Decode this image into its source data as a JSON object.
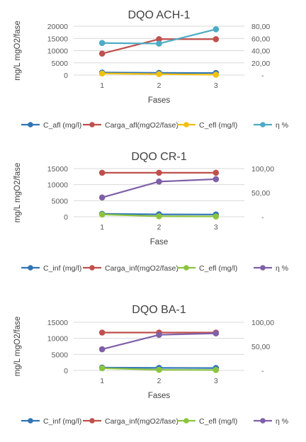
{
  "chart_data": [
    {
      "type": "line",
      "title": "DQO ACH-1",
      "xlabel": "Fases",
      "ylabel": "mg/L mgO2/fase",
      "categories": [
        "1",
        "2",
        "3"
      ],
      "ylim": [
        0,
        20000
      ],
      "y_ticks": [
        "0",
        "5000",
        "10000",
        "15000",
        "20000"
      ],
      "y2lim": [
        0,
        80
      ],
      "y2_ticks": [
        "-",
        "20,00",
        "40,00",
        "60,00",
        "80,00"
      ],
      "series": [
        {
          "name": "C_afl (mg/l)",
          "axis": "left",
          "color": "#2e75b6",
          "values": [
            1050,
            900,
            850
          ]
        },
        {
          "name": "Carga_afl(mgO2/fase)",
          "axis": "left",
          "color": "#c0504d",
          "values": [
            8800,
            14700,
            14700
          ]
        },
        {
          "name": "C_efl (mg/l)",
          "axis": "left",
          "color": "#f2c012",
          "values": [
            650,
            400,
            150
          ]
        },
        {
          "name": "η %",
          "axis": "right",
          "color": "#4bacc6",
          "values": [
            52.5,
            51.5,
            75
          ]
        }
      ]
    },
    {
      "type": "line",
      "title": "DQO CR-1",
      "xlabel": "Fase",
      "ylabel": "mg/L mgO2/fase",
      "categories": [
        "1",
        "2",
        "3"
      ],
      "ylim": [
        0,
        15000
      ],
      "y_ticks": [
        "0",
        "5000",
        "10000",
        "15000"
      ],
      "y2lim": [
        0,
        100
      ],
      "y2_ticks": [
        "-",
        "50,00",
        "100,00"
      ],
      "series": [
        {
          "name": "C_inf (mg/l)",
          "axis": "left",
          "color": "#2e75b6",
          "values": [
            900,
            750,
            700
          ]
        },
        {
          "name": "Carga_inf(mgO2/fase)",
          "axis": "left",
          "color": "#c0504d",
          "values": [
            13700,
            13700,
            13700
          ]
        },
        {
          "name": "C_efl (mg/l)",
          "axis": "left",
          "color": "#8cc43f",
          "values": [
            700,
            150,
            100
          ]
        },
        {
          "name": "η %",
          "axis": "right",
          "color": "#7f5fa8",
          "values": [
            40,
            73,
            78
          ]
        }
      ]
    },
    {
      "type": "line",
      "title": "DQO BA-1",
      "xlabel": "Fases",
      "ylabel": "mg/L mgO2/fase",
      "categories": [
        "1",
        "2",
        "3"
      ],
      "ylim": [
        0,
        15000
      ],
      "y_ticks": [
        "0",
        "5000",
        "10000",
        "15000"
      ],
      "y2lim": [
        0,
        100
      ],
      "y2_ticks": [
        "-",
        "50,00",
        "100,00"
      ],
      "series": [
        {
          "name": "C_inf (mg/l)",
          "axis": "left",
          "color": "#2e75b6",
          "values": [
            900,
            800,
            750
          ]
        },
        {
          "name": "Carga_inf(mgO2/fase)",
          "axis": "left",
          "color": "#c0504d",
          "values": [
            11800,
            11800,
            11800
          ]
        },
        {
          "name": "C_efl (mg/l)",
          "axis": "left",
          "color": "#8cc43f",
          "values": [
            700,
            200,
            150
          ]
        },
        {
          "name": "η %",
          "axis": "right",
          "color": "#7f5fa8",
          "values": [
            44,
            74,
            77
          ]
        }
      ]
    }
  ]
}
